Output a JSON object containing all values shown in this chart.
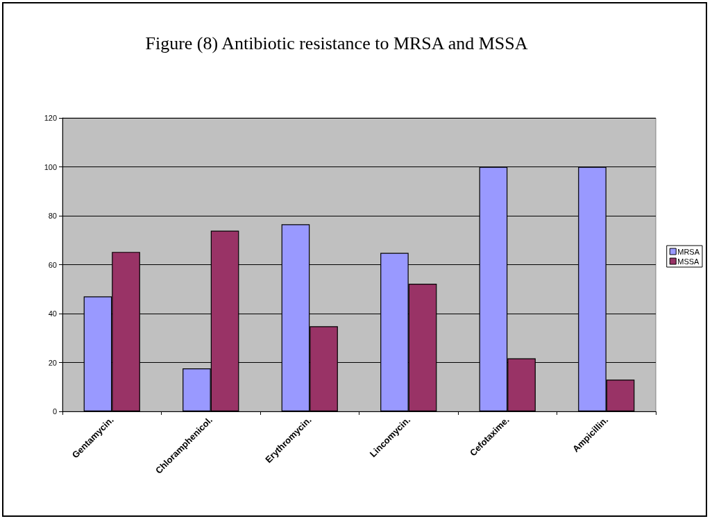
{
  "chart_data": {
    "type": "bar",
    "title": "Figure (8) Antibiotic resistance to MRSA and MSSA",
    "categories": [
      "Gentamycin.",
      "Chloramphenicol.",
      "Erythromycin.",
      "Lincomycin.",
      "Cefotaxime.",
      "Ampicillin."
    ],
    "series": [
      {
        "name": "MRSA",
        "color": "#9999ff",
        "values": [
          47,
          17.6,
          76.5,
          64.8,
          100,
          100
        ]
      },
      {
        "name": "MSSA",
        "color": "#993366",
        "values": [
          65.2,
          73.9,
          34.8,
          52.2,
          21.7,
          13
        ]
      }
    ],
    "ylim": [
      0,
      120
    ],
    "yticks": [
      0,
      20,
      40,
      60,
      80,
      100,
      120
    ],
    "grid": "y",
    "legend": "right"
  }
}
